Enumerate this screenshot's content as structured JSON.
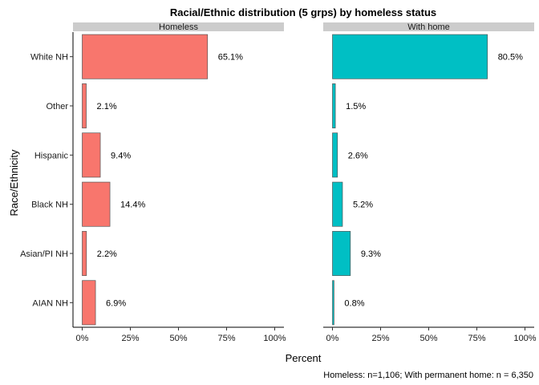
{
  "chart_data": {
    "type": "bar",
    "orientation": "horizontal",
    "title": "Racial/Ethnic distribution (5 grps) by homeless status",
    "xlabel": "Percent",
    "ylabel": "Race/Ethnicity",
    "caption": "Homeless: n=1,106; With permanent home: n = 6,350",
    "categories": [
      "White NH",
      "Other",
      "Hispanic",
      "Black NH",
      "Asian/PI NH",
      "AIAN NH"
    ],
    "xlim": [
      0,
      1
    ],
    "x_ticks": [
      0,
      0.25,
      0.5,
      0.75,
      1.0
    ],
    "x_tick_labels": [
      "0%",
      "25%",
      "50%",
      "75%",
      "100%"
    ],
    "grid": false,
    "legend": "none",
    "panels": [
      {
        "name": "Homeless",
        "color": "#F8766D",
        "values": [
          0.651,
          0.021,
          0.094,
          0.144,
          0.022,
          0.069
        ],
        "labels": [
          "65.1%",
          "2.1%",
          "9.4%",
          "14.4%",
          "2.2%",
          "6.9%"
        ]
      },
      {
        "name": "With home",
        "color": "#00BFC4",
        "values": [
          0.805,
          0.015,
          0.026,
          0.052,
          0.093,
          0.008
        ],
        "labels": [
          "80.5%",
          "1.5%",
          "2.6%",
          "5.2%",
          "9.3%",
          "0.8%"
        ]
      }
    ]
  }
}
